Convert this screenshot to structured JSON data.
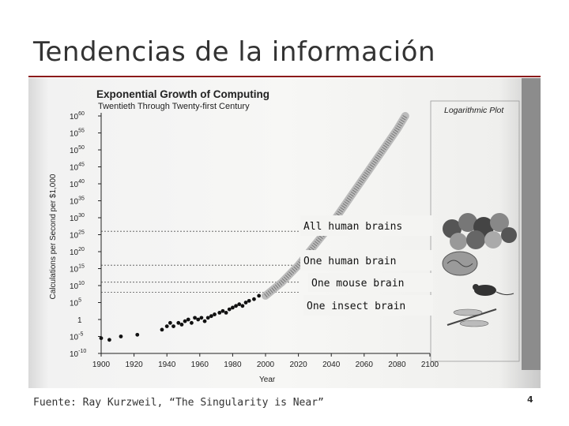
{
  "slide": {
    "title": "Tendencias de la información",
    "footer": "Fuente: Ray Kurzweil, “The Singularity is Near”",
    "page_number": "4",
    "accent_color": "#8b1a1a"
  },
  "chart_data": {
    "type": "scatter",
    "title": "Exponential Growth of Computing",
    "subtitle": "Twentieth Through Twenty-first Century",
    "xlabel": "Year",
    "ylabel": "Calculations per Second per $1,000",
    "scale_note": "Logarithmic Plot",
    "y_scale": "log",
    "xlim": [
      1900,
      2100
    ],
    "ylim_exponent": [
      -10,
      60
    ],
    "x_ticks": [
      "1900",
      "1920",
      "1940",
      "1960",
      "1980",
      "2000",
      "2020",
      "2040",
      "2060",
      "2080",
      "2100"
    ],
    "y_ticks": [
      {
        "exp": 60,
        "label": "10^60"
      },
      {
        "exp": 55,
        "label": "10^55"
      },
      {
        "exp": 50,
        "label": "10^50"
      },
      {
        "exp": 45,
        "label": "10^45"
      },
      {
        "exp": 40,
        "label": "10^40"
      },
      {
        "exp": 35,
        "label": "10^35"
      },
      {
        "exp": 30,
        "label": "10^30"
      },
      {
        "exp": 25,
        "label": "10^25"
      },
      {
        "exp": 20,
        "label": "10^20"
      },
      {
        "exp": 15,
        "label": "10^15"
      },
      {
        "exp": 10,
        "label": "10^10"
      },
      {
        "exp": 5,
        "label": "10^5"
      },
      {
        "exp": 0,
        "label": "1"
      },
      {
        "exp": -5,
        "label": "10^-5"
      },
      {
        "exp": -10,
        "label": "10^-10"
      }
    ],
    "reference_levels": [
      {
        "label": "All human brains",
        "exp": 26
      },
      {
        "label": "One human brain",
        "exp": 16
      },
      {
        "label": "One mouse brain",
        "exp": 11
      },
      {
        "label": "One insect brain",
        "exp": 8
      }
    ],
    "historical_points": [
      {
        "year": 1900,
        "exp": -5.5
      },
      {
        "year": 1905,
        "exp": -6
      },
      {
        "year": 1912,
        "exp": -5
      },
      {
        "year": 1922,
        "exp": -4.5
      },
      {
        "year": 1937,
        "exp": -3
      },
      {
        "year": 1940,
        "exp": -2
      },
      {
        "year": 1942,
        "exp": -1
      },
      {
        "year": 1944,
        "exp": -2
      },
      {
        "year": 1947,
        "exp": -1
      },
      {
        "year": 1949,
        "exp": -1.5
      },
      {
        "year": 1951,
        "exp": -0.5
      },
      {
        "year": 1953,
        "exp": 0
      },
      {
        "year": 1955,
        "exp": -1
      },
      {
        "year": 1957,
        "exp": 0.5
      },
      {
        "year": 1959,
        "exp": 0
      },
      {
        "year": 1961,
        "exp": 0.5
      },
      {
        "year": 1963,
        "exp": -0.5
      },
      {
        "year": 1965,
        "exp": 0.5
      },
      {
        "year": 1967,
        "exp": 1
      },
      {
        "year": 1969,
        "exp": 1.5
      },
      {
        "year": 1972,
        "exp": 2
      },
      {
        "year": 1974,
        "exp": 2.5
      },
      {
        "year": 1976,
        "exp": 2
      },
      {
        "year": 1978,
        "exp": 3
      },
      {
        "year": 1980,
        "exp": 3.5
      },
      {
        "year": 1982,
        "exp": 4
      },
      {
        "year": 1984,
        "exp": 4.5
      },
      {
        "year": 1986,
        "exp": 4
      },
      {
        "year": 1988,
        "exp": 5
      },
      {
        "year": 1990,
        "exp": 5.5
      },
      {
        "year": 1993,
        "exp": 6
      },
      {
        "year": 1996,
        "exp": 7
      }
    ],
    "projection_band": [
      {
        "year": 2000,
        "exp": 7
      },
      {
        "year": 2010,
        "exp": 11
      },
      {
        "year": 2020,
        "exp": 16
      },
      {
        "year": 2030,
        "exp": 22
      },
      {
        "year": 2040,
        "exp": 28
      },
      {
        "year": 2050,
        "exp": 35
      },
      {
        "year": 2060,
        "exp": 42
      },
      {
        "year": 2070,
        "exp": 49
      },
      {
        "year": 2080,
        "exp": 56
      },
      {
        "year": 2085,
        "exp": 60
      }
    ],
    "grid": false
  }
}
